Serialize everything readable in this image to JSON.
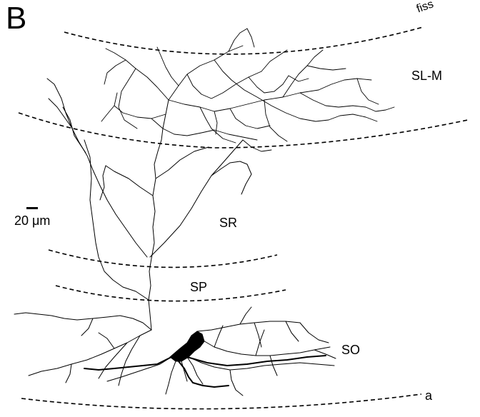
{
  "figure": {
    "panel_letter": "B",
    "layers": {
      "fiss": "fiss",
      "slm": "SL-M",
      "sr": "SR",
      "sp": "SP",
      "so": "SO",
      "alveus": "a"
    },
    "scale_bar": {
      "label": "20 μm",
      "value": 20,
      "unit": "μm"
    }
  }
}
